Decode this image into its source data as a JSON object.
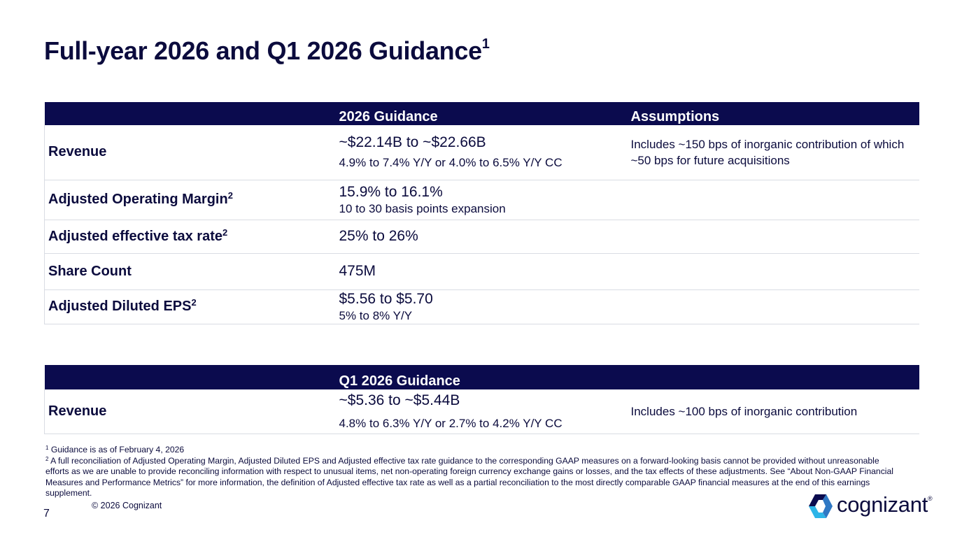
{
  "title": {
    "text": "Full-year 2026 and Q1 2026 Guidance",
    "sup": "1"
  },
  "annual_table": {
    "headers": [
      "",
      "2026 Guidance",
      "Assumptions"
    ],
    "rows": [
      {
        "label": "Revenue",
        "label_sup": "",
        "main": "~$22.14B to ~$22.66B",
        "sub": "4.9% to 7.4% Y/Y or 4.0% to 6.5% Y/Y CC",
        "note": "Includes ~150 bps of inorganic contribution of which ~50 bps for future acquisitions"
      },
      {
        "label": "Adjusted Operating Margin",
        "label_sup": "2",
        "main": "15.9% to 16.1%",
        "sub": "10 to 30 basis points expansion",
        "note": ""
      },
      {
        "label": "Adjusted effective tax rate",
        "label_sup": "2",
        "main": "25% to 26%",
        "sub": "",
        "note": ""
      },
      {
        "label": "Share Count",
        "label_sup": "",
        "main": "475M",
        "sub": "",
        "note": ""
      },
      {
        "label": "Adjusted Diluted EPS",
        "label_sup": "2",
        "main": "$5.56 to $5.70",
        "sub": "5% to 8% Y/Y",
        "note": ""
      }
    ]
  },
  "quarter_table": {
    "headers": [
      "",
      "Q1 2026 Guidance",
      ""
    ],
    "rows": [
      {
        "label": "Revenue",
        "main": "~$5.36 to ~$5.44B",
        "sub": "4.8% to 6.3% Y/Y or 2.7% to 4.2% Y/Y CC",
        "note": "Includes ~100 bps of inorganic contribution"
      }
    ]
  },
  "footnotes": [
    {
      "mark": "1",
      "text": "Guidance is as of February 4, 2026"
    },
    {
      "mark": "2",
      "text": "A full reconciliation of Adjusted Operating Margin, Adjusted Diluted EPS and Adjusted effective tax rate guidance to the corresponding GAAP measures on a forward-looking basis cannot be provided without unreasonable  efforts as we are unable to provide reconciling information with respect to unusual items, net non-operating foreign currency exchange gains or losses, and the tax effects of these adjustments. See “About Non-GAAP Financial Measures and Performance Metrics” for more information, the definition of Adjusted effective tax rate as well as a partial reconciliation to the most directly comparable GAAP financial measures at the end of this earnings supplement."
    }
  ],
  "copyright": "© 2026 Cognizant",
  "page_number": "7",
  "logo": {
    "text": "cognizant",
    "tm": "®",
    "colors": {
      "dark": "#0b0b4e",
      "mid": "#2f78c4",
      "light": "#2db5e8"
    }
  }
}
